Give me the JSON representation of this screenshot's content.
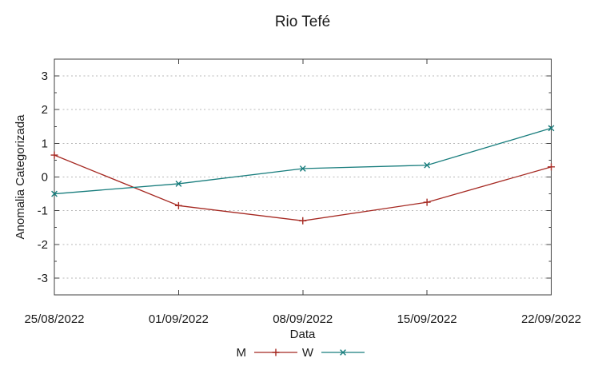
{
  "chart_data": {
    "type": "line",
    "title": "Rio Tefé",
    "xlabel": "Data",
    "ylabel": "Anomalia Categorizada",
    "categories": [
      "25/08/2022",
      "01/09/2022",
      "08/09/2022",
      "15/09/2022",
      "22/09/2022"
    ],
    "series": [
      {
        "name": "M",
        "color": "#a52821",
        "marker": "plus",
        "values": [
          0.65,
          -0.85,
          -1.3,
          -0.75,
          0.3
        ]
      },
      {
        "name": "W",
        "color": "#187d7d",
        "marker": "cross",
        "values": [
          -0.5,
          -0.2,
          0.25,
          0.35,
          1.45
        ]
      }
    ],
    "ylim": [
      -3.5,
      3.5
    ],
    "yticks": [
      -3,
      -2,
      -1,
      0,
      1,
      2,
      3
    ],
    "grid": true,
    "legend_position": "bottom-center"
  },
  "colors": {
    "background": "#ffffff",
    "grid": "#b8b8b8",
    "border": "#404040",
    "text": "#1a1a1a"
  }
}
